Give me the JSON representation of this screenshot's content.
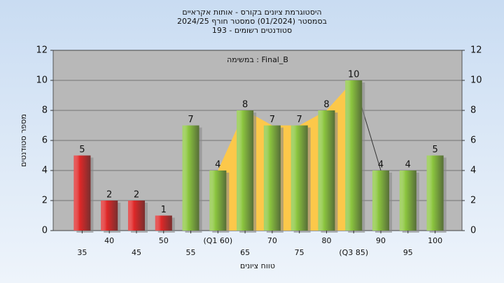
{
  "chart_data": {
    "type": "bar",
    "title": [
      "היסטוגרמת ציונים בקורס - אותות אקראיים",
      "בסמסטר  (01/2024)  סמסטר חורף 2024/25",
      "סטודנטים רשומים - 193"
    ],
    "annotation": "במשימה : Final_B",
    "x_label": "טווח ציונים",
    "y_label": "מספר סטודנטים",
    "categories": [
      "35",
      "40",
      "45",
      "50",
      "55",
      "(Q1 60)",
      "65",
      "70",
      "75",
      "80",
      "(Q3 85)",
      "90",
      "95",
      "100"
    ],
    "values": [
      5,
      2,
      2,
      1,
      7,
      4,
      8,
      7,
      7,
      8,
      10,
      4,
      4,
      5
    ],
    "colors": [
      "#e02828",
      "#e02828",
      "#e02828",
      "#e02828",
      "#8cc63f",
      "#8cc63f",
      "#8cc63f",
      "#8cc63f",
      "#8cc63f",
      "#8cc63f",
      "#8cc63f",
      "#8cc63f",
      "#8cc63f",
      "#8cc63f"
    ],
    "highlight": {
      "start": 5,
      "end": 10,
      "color": "#fcc84a"
    },
    "ylim": [
      0,
      12
    ],
    "yticks": [
      0,
      2,
      4,
      6,
      8,
      10,
      12
    ],
    "grid": true
  }
}
